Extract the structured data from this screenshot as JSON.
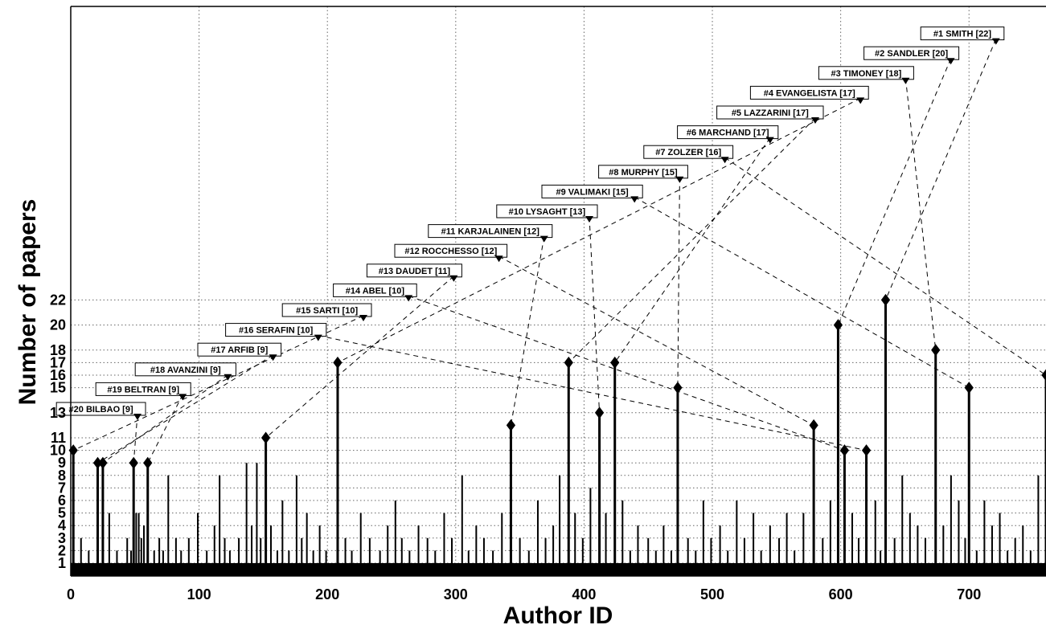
{
  "chart_data": {
    "type": "stem",
    "xlabel": "Author ID",
    "ylabel": "Number of papers",
    "xlim": [
      0,
      760
    ],
    "ylim": [
      0,
      30
    ],
    "x_ticks": [
      0,
      100,
      200,
      300,
      400,
      500,
      600,
      700
    ],
    "y_ticks": [
      1,
      2,
      3,
      4,
      5,
      6,
      7,
      8,
      9,
      10,
      11,
      13,
      15,
      16,
      17,
      18,
      20,
      22
    ],
    "grid": true,
    "top_authors": [
      {
        "rank": 1,
        "label": "#1 SMITH [22]",
        "x": 635,
        "papers": 22
      },
      {
        "rank": 2,
        "label": "#2 SANDLER [20]",
        "x": 598,
        "papers": 20
      },
      {
        "rank": 3,
        "label": "#3 TIMONEY [18]",
        "x": 674,
        "papers": 18
      },
      {
        "rank": 4,
        "label": "#4 EVANGELISTA [17]",
        "x": 208,
        "papers": 17
      },
      {
        "rank": 5,
        "label": "#5 LAZZARINI [17]",
        "x": 388,
        "papers": 17
      },
      {
        "rank": 6,
        "label": "#6 MARCHAND [17]",
        "x": 424,
        "papers": 17
      },
      {
        "rank": 7,
        "label": "#7 ZOLZER [16]",
        "x": 760,
        "papers": 16
      },
      {
        "rank": 8,
        "label": "#8 MURPHY [15]",
        "x": 473,
        "papers": 15
      },
      {
        "rank": 9,
        "label": "#9 VALIMAKI [15]",
        "x": 700,
        "papers": 15
      },
      {
        "rank": 10,
        "label": "#10 LYSAGHT [13]",
        "x": 412,
        "papers": 13
      },
      {
        "rank": 11,
        "label": "#11 KARJALAINEN [12]",
        "x": 343,
        "papers": 12
      },
      {
        "rank": 12,
        "label": "#12 ROCCHESSO [12]",
        "x": 579,
        "papers": 12
      },
      {
        "rank": 13,
        "label": "#13 DAUDET [11]",
        "x": 152,
        "papers": 11
      },
      {
        "rank": 14,
        "label": "#14 ABEL [10]",
        "x": 603,
        "papers": 10
      },
      {
        "rank": 15,
        "label": "#15 SARTI [10]",
        "x": 2,
        "papers": 10
      },
      {
        "rank": 16,
        "label": "#16 SERAFIN [10]",
        "x": 620,
        "papers": 10
      },
      {
        "rank": 17,
        "label": "#17 ARFIB [9]",
        "x": 21,
        "papers": 9
      },
      {
        "rank": 18,
        "label": "#18 AVANZINI [9]",
        "x": 25,
        "papers": 9
      },
      {
        "rank": 19,
        "label": "#19 BELTRAN [9]",
        "x": 60,
        "papers": 9
      },
      {
        "rank": 20,
        "label": "#20 BILBAO [9]",
        "x": 49,
        "papers": 9
      }
    ],
    "stems": [
      {
        "x": 8,
        "y": 3
      },
      {
        "x": 14,
        "y": 2
      },
      {
        "x": 30,
        "y": 5
      },
      {
        "x": 36,
        "y": 2
      },
      {
        "x": 44,
        "y": 3
      },
      {
        "x": 47,
        "y": 2
      },
      {
        "x": 51,
        "y": 5
      },
      {
        "x": 53,
        "y": 5
      },
      {
        "x": 55,
        "y": 3
      },
      {
        "x": 57,
        "y": 4
      },
      {
        "x": 65,
        "y": 2
      },
      {
        "x": 69,
        "y": 3
      },
      {
        "x": 72,
        "y": 2
      },
      {
        "x": 76,
        "y": 8
      },
      {
        "x": 82,
        "y": 3
      },
      {
        "x": 86,
        "y": 2
      },
      {
        "x": 92,
        "y": 3
      },
      {
        "x": 99,
        "y": 5
      },
      {
        "x": 106,
        "y": 2
      },
      {
        "x": 112,
        "y": 4
      },
      {
        "x": 116,
        "y": 8
      },
      {
        "x": 120,
        "y": 3
      },
      {
        "x": 124,
        "y": 2
      },
      {
        "x": 131,
        "y": 3
      },
      {
        "x": 137,
        "y": 9
      },
      {
        "x": 141,
        "y": 4
      },
      {
        "x": 145,
        "y": 9
      },
      {
        "x": 148,
        "y": 3
      },
      {
        "x": 156,
        "y": 4
      },
      {
        "x": 161,
        "y": 2
      },
      {
        "x": 165,
        "y": 6
      },
      {
        "x": 170,
        "y": 2
      },
      {
        "x": 176,
        "y": 8
      },
      {
        "x": 180,
        "y": 3
      },
      {
        "x": 184,
        "y": 5
      },
      {
        "x": 189,
        "y": 2
      },
      {
        "x": 194,
        "y": 4
      },
      {
        "x": 199,
        "y": 2
      },
      {
        "x": 214,
        "y": 3
      },
      {
        "x": 219,
        "y": 2
      },
      {
        "x": 226,
        "y": 5
      },
      {
        "x": 233,
        "y": 3
      },
      {
        "x": 241,
        "y": 2
      },
      {
        "x": 247,
        "y": 4
      },
      {
        "x": 253,
        "y": 6
      },
      {
        "x": 258,
        "y": 3
      },
      {
        "x": 264,
        "y": 2
      },
      {
        "x": 271,
        "y": 4
      },
      {
        "x": 278,
        "y": 3
      },
      {
        "x": 284,
        "y": 2
      },
      {
        "x": 291,
        "y": 5
      },
      {
        "x": 297,
        "y": 3
      },
      {
        "x": 305,
        "y": 8
      },
      {
        "x": 310,
        "y": 2
      },
      {
        "x": 316,
        "y": 4
      },
      {
        "x": 322,
        "y": 3
      },
      {
        "x": 329,
        "y": 2
      },
      {
        "x": 336,
        "y": 5
      },
      {
        "x": 350,
        "y": 3
      },
      {
        "x": 357,
        "y": 2
      },
      {
        "x": 364,
        "y": 6
      },
      {
        "x": 370,
        "y": 3
      },
      {
        "x": 376,
        "y": 4
      },
      {
        "x": 381,
        "y": 8
      },
      {
        "x": 393,
        "y": 5
      },
      {
        "x": 399,
        "y": 3
      },
      {
        "x": 405,
        "y": 7
      },
      {
        "x": 417,
        "y": 5
      },
      {
        "x": 430,
        "y": 6
      },
      {
        "x": 436,
        "y": 2
      },
      {
        "x": 442,
        "y": 4
      },
      {
        "x": 450,
        "y": 3
      },
      {
        "x": 456,
        "y": 2
      },
      {
        "x": 462,
        "y": 4
      },
      {
        "x": 468,
        "y": 2
      },
      {
        "x": 481,
        "y": 3
      },
      {
        "x": 487,
        "y": 2
      },
      {
        "x": 493,
        "y": 6
      },
      {
        "x": 499,
        "y": 3
      },
      {
        "x": 506,
        "y": 4
      },
      {
        "x": 512,
        "y": 2
      },
      {
        "x": 519,
        "y": 6
      },
      {
        "x": 525,
        "y": 3
      },
      {
        "x": 532,
        "y": 5
      },
      {
        "x": 538,
        "y": 2
      },
      {
        "x": 545,
        "y": 4
      },
      {
        "x": 552,
        "y": 3
      },
      {
        "x": 558,
        "y": 5
      },
      {
        "x": 564,
        "y": 2
      },
      {
        "x": 571,
        "y": 5
      },
      {
        "x": 586,
        "y": 3
      },
      {
        "x": 592,
        "y": 6
      },
      {
        "x": 609,
        "y": 5
      },
      {
        "x": 614,
        "y": 3
      },
      {
        "x": 627,
        "y": 6
      },
      {
        "x": 631,
        "y": 2
      },
      {
        "x": 642,
        "y": 3
      },
      {
        "x": 648,
        "y": 8
      },
      {
        "x": 654,
        "y": 5
      },
      {
        "x": 660,
        "y": 4
      },
      {
        "x": 666,
        "y": 3
      },
      {
        "x": 680,
        "y": 4
      },
      {
        "x": 686,
        "y": 8
      },
      {
        "x": 692,
        "y": 6
      },
      {
        "x": 697,
        "y": 3
      },
      {
        "x": 706,
        "y": 2
      },
      {
        "x": 712,
        "y": 6
      },
      {
        "x": 718,
        "y": 4
      },
      {
        "x": 724,
        "y": 5
      },
      {
        "x": 730,
        "y": 2
      },
      {
        "x": 736,
        "y": 3
      },
      {
        "x": 742,
        "y": 4
      },
      {
        "x": 748,
        "y": 2
      },
      {
        "x": 754,
        "y": 8
      }
    ]
  }
}
